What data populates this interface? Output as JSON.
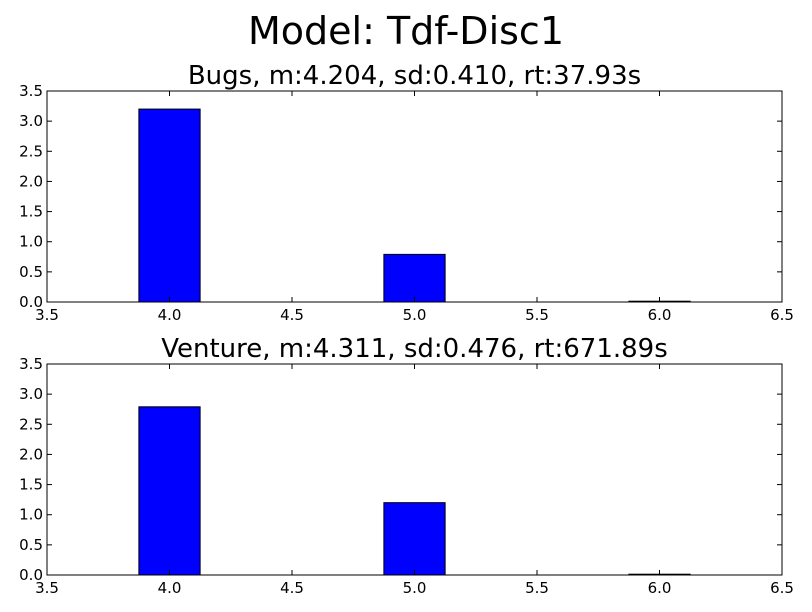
{
  "figure_title": "Model: Tdf-Disc1",
  "colors": {
    "bar_fill": "#0000ff",
    "bar_edge": "#000000",
    "axes": "#000000",
    "background": "#ffffff"
  },
  "chart_data": [
    {
      "type": "bar",
      "title": "Bugs,  m:4.204,  sd:0.410,  rt:37.93s",
      "xlabel": "",
      "ylabel": "",
      "xlim": [
        3.5,
        6.5
      ],
      "ylim": [
        0.0,
        3.5
      ],
      "x": [
        4.0,
        5.0,
        6.0
      ],
      "values": [
        3.2,
        0.79,
        0.01
      ],
      "bar_width": 0.25,
      "xticks": [
        "3.5",
        "4.0",
        "4.5",
        "5.0",
        "5.5",
        "6.0",
        "6.5"
      ],
      "yticks": [
        "0.0",
        "0.5",
        "1.0",
        "1.5",
        "2.0",
        "2.5",
        "3.0",
        "3.5"
      ],
      "grid": false
    },
    {
      "type": "bar",
      "title": "Venture,  m:4.311,  sd:0.476,  rt:671.89s",
      "xlabel": "",
      "ylabel": "",
      "xlim": [
        3.5,
        6.5
      ],
      "ylim": [
        0.0,
        3.5
      ],
      "x": [
        4.0,
        5.0,
        6.0
      ],
      "values": [
        2.79,
        1.2,
        0.01
      ],
      "bar_width": 0.25,
      "xticks": [
        "3.5",
        "4.0",
        "4.5",
        "5.0",
        "5.5",
        "6.0",
        "6.5"
      ],
      "yticks": [
        "0.0",
        "0.5",
        "1.0",
        "1.5",
        "2.0",
        "2.5",
        "3.0",
        "3.5"
      ],
      "grid": false
    }
  ]
}
